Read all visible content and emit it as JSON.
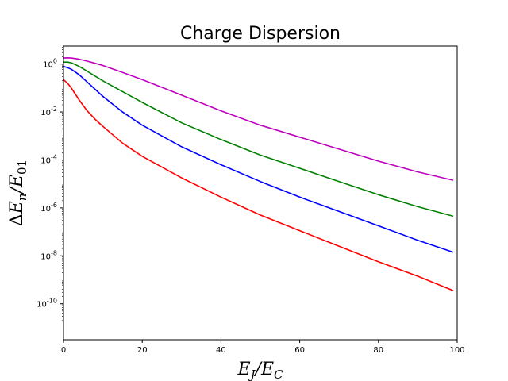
{
  "chart_data": {
    "type": "line",
    "title": "Charge Dispersion",
    "xlabel": "E_J/E_C",
    "ylabel": "ΔE_n/E_01",
    "xlim": [
      0,
      100
    ],
    "ylim_log10": [
      -11.5,
      0.75
    ],
    "yscale": "log",
    "grid": false,
    "legend": "none",
    "x_ticks": [
      "0",
      "20",
      "40",
      "60",
      "80",
      "100"
    ],
    "y_ticks": [
      {
        "base": "10",
        "exp": "0"
      },
      {
        "base": "10",
        "exp": "-2"
      },
      {
        "base": "10",
        "exp": "-4"
      },
      {
        "base": "10",
        "exp": "-6"
      },
      {
        "base": "10",
        "exp": "-8"
      },
      {
        "base": "10",
        "exp": "-10"
      }
    ],
    "series": [
      {
        "color": "#ff0000",
        "x": [
          0,
          1,
          2,
          4,
          6,
          8,
          10,
          15,
          20,
          30,
          40,
          50,
          60,
          70,
          80,
          90,
          99
        ],
        "log10_y": [
          -0.65,
          -0.8,
          -1.0,
          -1.5,
          -1.95,
          -2.3,
          -2.6,
          -3.3,
          -3.85,
          -4.75,
          -5.55,
          -6.3,
          -6.95,
          -7.6,
          -8.25,
          -8.85,
          -9.45
        ]
      },
      {
        "color": "#0000ff",
        "x": [
          0,
          1,
          2,
          4,
          6,
          8,
          10,
          15,
          20,
          30,
          40,
          50,
          60,
          70,
          80,
          90,
          99
        ],
        "log10_y": [
          -0.1,
          -0.15,
          -0.22,
          -0.45,
          -0.75,
          -1.05,
          -1.35,
          -2.0,
          -2.55,
          -3.45,
          -4.2,
          -4.9,
          -5.55,
          -6.15,
          -6.75,
          -7.35,
          -7.85
        ]
      },
      {
        "color": "#008000",
        "x": [
          0,
          1,
          2,
          4,
          6,
          8,
          10,
          15,
          20,
          30,
          40,
          50,
          60,
          70,
          80,
          90,
          99
        ],
        "log10_y": [
          0.08,
          0.08,
          0.05,
          -0.1,
          -0.3,
          -0.5,
          -0.7,
          -1.15,
          -1.6,
          -2.45,
          -3.15,
          -3.8,
          -4.35,
          -4.9,
          -5.45,
          -5.95,
          -6.35
        ]
      },
      {
        "color": "#bf00bf",
        "x": [
          0,
          1,
          2,
          4,
          6,
          8,
          10,
          15,
          20,
          30,
          40,
          50,
          60,
          70,
          80,
          90,
          99
        ],
        "log10_y": [
          0.25,
          0.26,
          0.25,
          0.2,
          0.12,
          0.03,
          -0.06,
          -0.35,
          -0.65,
          -1.3,
          -1.95,
          -2.55,
          -3.05,
          -3.55,
          -4.05,
          -4.5,
          -4.85
        ]
      }
    ]
  }
}
